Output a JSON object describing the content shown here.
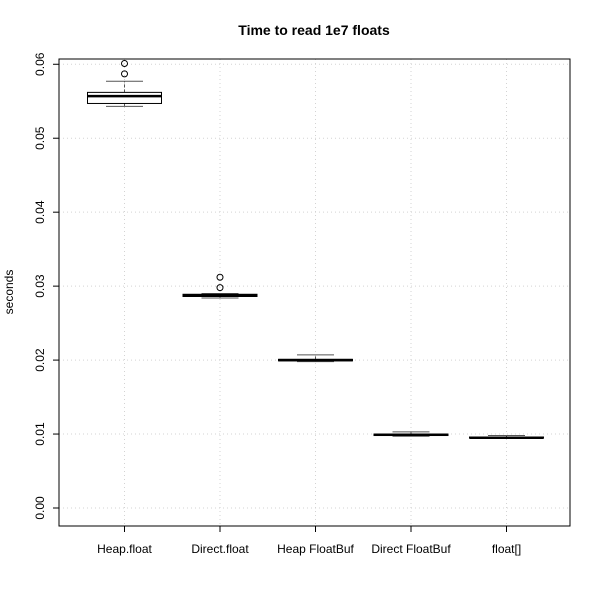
{
  "chart_data": {
    "type": "boxplot",
    "title": "Time to read 1e7 floats",
    "xlabel": "",
    "ylabel": "seconds",
    "ylim": [
      0.0,
      0.0622
    ],
    "grid": true,
    "yticks": [
      0.0,
      0.01,
      0.02,
      0.03,
      0.04,
      0.05,
      0.06
    ],
    "ytick_labels": [
      "0.00",
      "0.01",
      "0.02",
      "0.03",
      "0.04",
      "0.05",
      "0.06"
    ],
    "categories": [
      "Heap.float",
      "Direct.float",
      "Heap FloatBuf",
      "Direct FloatBuf",
      "float[]"
    ],
    "boxes": [
      {
        "category": "Heap.float",
        "whisker_low": 0.0543,
        "q1": 0.0547,
        "median": 0.0557,
        "q3": 0.0562,
        "whisker_high": 0.0577,
        "outliers": [
          0.0587,
          0.0601
        ]
      },
      {
        "category": "Direct.float",
        "whisker_low": 0.0284,
        "q1": 0.0286,
        "median": 0.0287,
        "q3": 0.0289,
        "whisker_high": 0.029,
        "outliers": [
          0.0298,
          0.0312
        ]
      },
      {
        "category": "Heap FloatBuf",
        "whisker_low": 0.0198,
        "q1": 0.0199,
        "median": 0.02,
        "q3": 0.0201,
        "whisker_high": 0.0207,
        "outliers": []
      },
      {
        "category": "Direct FloatBuf",
        "whisker_low": 0.0097,
        "q1": 0.0098,
        "median": 0.0099,
        "q3": 0.01,
        "whisker_high": 0.0103,
        "outliers": []
      },
      {
        "category": "float[]",
        "whisker_low": 0.0094,
        "q1": 0.0095,
        "median": 0.0095,
        "q3": 0.0096,
        "whisker_high": 0.0098,
        "outliers": []
      }
    ],
    "colors": {
      "box_fill": "#ffffff",
      "line": "#000000",
      "whisker": "#555555",
      "grid": "#d3d3d3"
    }
  }
}
